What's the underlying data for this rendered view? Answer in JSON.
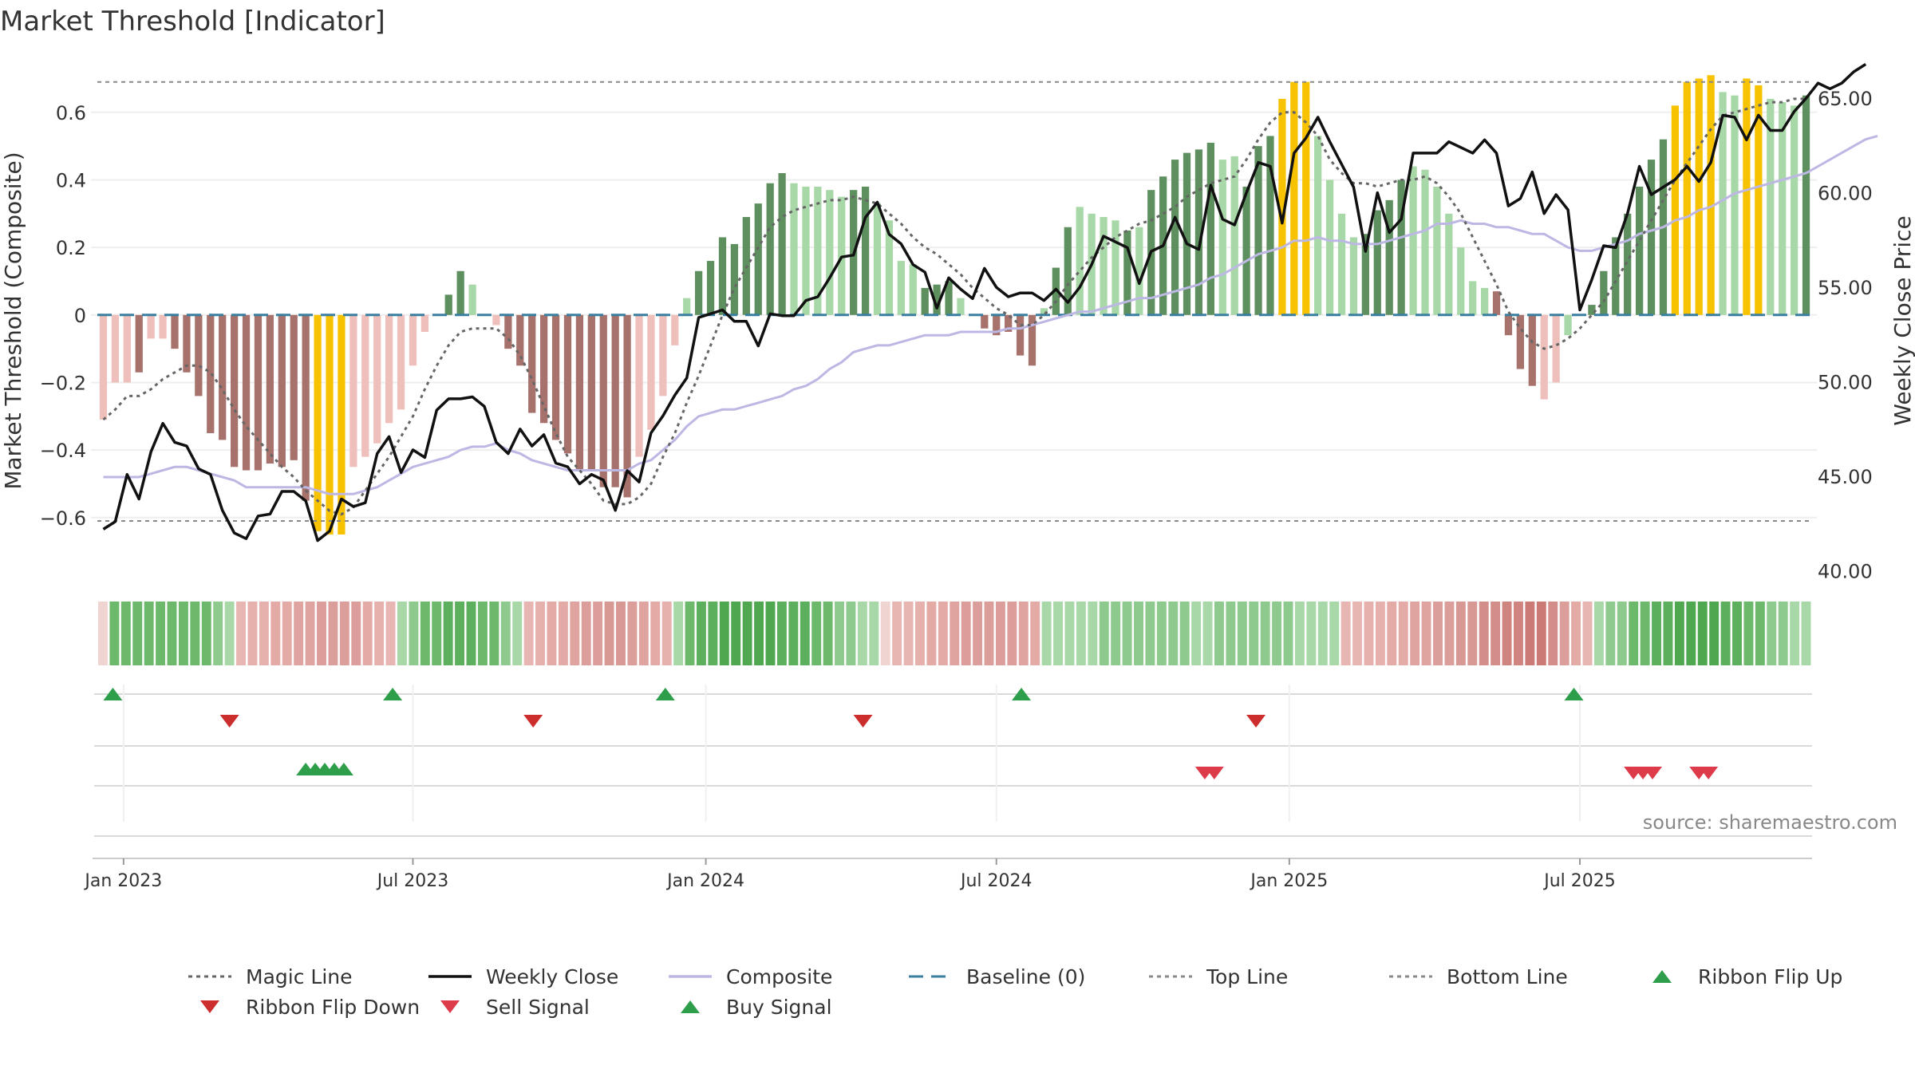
{
  "title": "Market Threshold [Indicator]",
  "source_note": "source: sharemaestro.com",
  "colors": {
    "red_light": "#efbfbb",
    "red_dark": "#a7716c",
    "green_light": "#a8d8a8",
    "green_dark": "#5e8f5e",
    "gold": "#f7c200",
    "magic": "#666666",
    "close": "#111111",
    "composite": "#bdb7e4",
    "baseline": "#3a7ea0",
    "threshold": "#888888",
    "flip_up": "#2e9e4a",
    "flip_down": "#cc2e2e",
    "sell": "#dd3b4a",
    "buy": "#2e9e4a"
  },
  "chart_data": {
    "type": "bar",
    "y_left_label": "Market Threshold (Composite)",
    "y_right_label": "Weekly Close Price",
    "y_left_ticks": [
      "0.6",
      "0.4",
      "0.2",
      "0",
      "−0.2",
      "−0.4",
      "−0.6"
    ],
    "y_left_tick_values": [
      0.6,
      0.4,
      0.2,
      0,
      -0.2,
      -0.4,
      -0.6
    ],
    "y_right_ticks": [
      "65.00",
      "60.00",
      "55.00",
      "50.00",
      "45.00",
      "40.00"
    ],
    "y_right_tick_values": [
      65,
      60,
      55,
      50,
      45,
      40
    ],
    "ylim_left": [
      -0.78,
      0.72
    ],
    "ylim_right": [
      39.6,
      66.4
    ],
    "x_ticks": [
      "Jan 2023",
      "Jul 2023",
      "Jan 2024",
      "Jul 2024",
      "Jan 2025",
      "Jul 2025"
    ],
    "x_tick_weeks": [
      1.7,
      26,
      50.6,
      75,
      99.6,
      124
    ],
    "top_line": 0.69,
    "bottom_line": -0.61,
    "baseline": 0,
    "composite_bars": [
      -0.31,
      -0.2,
      -0.2,
      -0.17,
      -0.07,
      -0.07,
      -0.1,
      -0.17,
      -0.24,
      -0.35,
      -0.37,
      -0.45,
      -0.46,
      -0.46,
      -0.44,
      -0.45,
      -0.43,
      -0.55,
      -0.64,
      -0.65,
      -0.65,
      -0.45,
      -0.42,
      -0.38,
      -0.32,
      -0.28,
      -0.15,
      -0.05,
      0,
      0.06,
      0.13,
      0.09,
      0,
      -0.03,
      -0.1,
      -0.15,
      -0.29,
      -0.32,
      -0.37,
      -0.41,
      -0.46,
      -0.46,
      -0.51,
      -0.51,
      -0.54,
      -0.42,
      -0.34,
      -0.24,
      -0.09,
      0.05,
      0.13,
      0.16,
      0.23,
      0.21,
      0.29,
      0.33,
      0.39,
      0.42,
      0.39,
      0.38,
      0.38,
      0.37,
      0.35,
      0.37,
      0.38,
      0.33,
      0.28,
      0.16,
      0.15,
      0.08,
      0.09,
      0.1,
      0.05,
      0,
      -0.04,
      -0.06,
      -0.05,
      -0.12,
      -0.15,
      0.02,
      0.14,
      0.26,
      0.32,
      0.3,
      0.29,
      0.28,
      0.25,
      0.26,
      0.37,
      0.41,
      0.46,
      0.48,
      0.49,
      0.51,
      0.46,
      0.47,
      0.38,
      0.5,
      0.53,
      0.64,
      0.69,
      0.69,
      0.53,
      0.4,
      0.3,
      0.23,
      0.24,
      0.31,
      0.34,
      0.4,
      0.44,
      0.43,
      0.38,
      0.3,
      0.2,
      0.1,
      0.08,
      0.07,
      -0.06,
      -0.16,
      -0.21,
      -0.25,
      -0.2,
      -0.06,
      0,
      0.03,
      0.13,
      0.23,
      0.3,
      0.38,
      0.46,
      0.52,
      0.62,
      0.69,
      0.7,
      0.71,
      0.66,
      0.65,
      0.7,
      0.68,
      0.64,
      0.63,
      0.62,
      0.65
    ],
    "bar_colors": [
      "rl",
      "rl",
      "rl",
      "rd",
      "rl",
      "rl",
      "rd",
      "rd",
      "rd",
      "rd",
      "rd",
      "rd",
      "rd",
      "rd",
      "rd",
      "rd",
      "rd",
      "rd",
      "g",
      "g",
      "g",
      "rl",
      "rl",
      "rl",
      "rl",
      "rl",
      "rl",
      "rl",
      "rl",
      "gd",
      "gd",
      "gl",
      "rl",
      "rl",
      "rd",
      "rd",
      "rd",
      "rd",
      "rd",
      "rd",
      "rd",
      "rd",
      "rd",
      "rd",
      "rd",
      "rl",
      "rl",
      "rl",
      "rl",
      "gl",
      "gd",
      "gd",
      "gd",
      "gd",
      "gd",
      "gd",
      "gd",
      "gd",
      "gl",
      "gl",
      "gl",
      "gl",
      "gl",
      "gd",
      "gd",
      "gl",
      "gl",
      "gl",
      "gl",
      "gd",
      "gd",
      "gd",
      "gl",
      "rd",
      "rd",
      "rd",
      "rd",
      "rd",
      "rd",
      "gl",
      "gd",
      "gd",
      "gl",
      "gl",
      "gl",
      "gl",
      "gd",
      "gl",
      "gd",
      "gd",
      "gd",
      "gd",
      "gd",
      "gd",
      "gl",
      "gl",
      "gd",
      "gd",
      "gd",
      "g",
      "g",
      "g",
      "gl",
      "gl",
      "gl",
      "gl",
      "gd",
      "gd",
      "gd",
      "gd",
      "gl",
      "gl",
      "gl",
      "gl",
      "gl",
      "gl",
      "gl",
      "rd",
      "rd",
      "rd",
      "rd",
      "rl",
      "rl",
      "gl",
      "gl",
      "gd",
      "gd",
      "gd",
      "gd",
      "gd",
      "gd",
      "gd",
      "g",
      "g",
      "g",
      "g",
      "gl",
      "gl",
      "g",
      "g",
      "gl",
      "gl",
      "gl",
      "gd"
    ],
    "series": [
      {
        "name": "Magic Line",
        "style": "dotted",
        "values": [
          -0.31,
          -0.28,
          -0.24,
          -0.24,
          -0.22,
          -0.19,
          -0.17,
          -0.15,
          -0.15,
          -0.17,
          -0.22,
          -0.28,
          -0.33,
          -0.37,
          -0.41,
          -0.45,
          -0.48,
          -0.52,
          -0.55,
          -0.58,
          -0.59,
          -0.57,
          -0.52,
          -0.47,
          -0.42,
          -0.36,
          -0.3,
          -0.22,
          -0.15,
          -0.09,
          -0.05,
          -0.04,
          -0.04,
          -0.04,
          -0.07,
          -0.12,
          -0.19,
          -0.27,
          -0.35,
          -0.42,
          -0.46,
          -0.5,
          -0.55,
          -0.56,
          -0.56,
          -0.54,
          -0.5,
          -0.42,
          -0.35,
          -0.26,
          -0.18,
          -0.09,
          0,
          0.08,
          0.14,
          0.2,
          0.26,
          0.29,
          0.31,
          0.32,
          0.33,
          0.34,
          0.34,
          0.35,
          0.34,
          0.33,
          0.3,
          0.27,
          0.23,
          0.2,
          0.18,
          0.15,
          0.12,
          0.08,
          0.05,
          0.02,
          0,
          -0.03,
          -0.03,
          0,
          0.04,
          0.09,
          0.13,
          0.17,
          0.2,
          0.23,
          0.25,
          0.27,
          0.28,
          0.3,
          0.32,
          0.35,
          0.37,
          0.39,
          0.4,
          0.41,
          0.46,
          0.52,
          0.57,
          0.6,
          0.6,
          0.57,
          0.53,
          0.46,
          0.42,
          0.39,
          0.39,
          0.38,
          0.39,
          0.4,
          0.4,
          0.41,
          0.39,
          0.35,
          0.3,
          0.23,
          0.16,
          0.09,
          0.01,
          -0.04,
          -0.08,
          -0.1,
          -0.09,
          -0.07,
          -0.04,
          0,
          0.04,
          0.1,
          0.16,
          0.22,
          0.28,
          0.34,
          0.4,
          0.45,
          0.5,
          0.55,
          0.59,
          0.6,
          0.61,
          0.62,
          0.63,
          0.63,
          0.64,
          0.64
        ]
      },
      {
        "name": "Weekly Close",
        "style": "solid",
        "values": [
          42.2,
          42.6,
          45.1,
          43.8,
          46.3,
          47.8,
          46.8,
          46.6,
          45.4,
          45.1,
          43.2,
          42.0,
          41.7,
          42.9,
          43.0,
          44.2,
          44.2,
          43.7,
          41.6,
          42.1,
          43.8,
          43.4,
          43.6,
          46.2,
          47.1,
          45.2,
          46.4,
          46.0,
          48.5,
          49.1,
          49.1,
          49.2,
          48.7,
          46.8,
          46.2,
          47.5,
          46.6,
          47.2,
          45.7,
          45.5,
          44.6,
          45.1,
          44.8,
          43.2,
          45.3,
          44.7,
          47.3,
          48.2,
          49.3,
          50.2,
          53.4,
          53.6,
          53.8,
          53.2,
          53.2,
          51.9,
          53.6,
          53.5,
          53.5,
          54.3,
          54.5,
          55.5,
          56.6,
          56.7,
          58.7,
          59.5,
          57.8,
          57.3,
          56.2,
          55.8,
          53.9,
          55.5,
          54.9,
          54.4,
          56.0,
          55.0,
          54.5,
          54.7,
          54.7,
          54.3,
          54.9,
          54.2,
          55.0,
          56.2,
          57.7,
          57.4,
          57.1,
          55.2,
          56.9,
          57.2,
          58.7,
          57.3,
          57.0,
          60.4,
          58.6,
          58.3,
          60.0,
          61.6,
          61.4,
          58.4,
          62.1,
          62.9,
          64.0,
          62.7,
          61.5,
          60.3,
          56.9,
          60.0,
          57.9,
          58.6,
          62.1,
          62.1,
          62.1,
          62.7,
          62.4,
          62.1,
          62.8,
          62.1,
          59.3,
          59.7,
          61.1,
          58.9,
          59.9,
          59.1,
          53.8,
          55.4,
          57.2,
          57.1,
          58.9,
          61.4,
          59.9,
          60.3,
          60.7,
          61.4,
          60.6,
          61.6,
          64.1,
          64.0,
          62.8,
          64.1,
          63.3,
          63.3,
          64.3,
          65.0,
          65.8,
          65.5,
          65.8,
          66.4,
          66.8
        ]
      },
      {
        "name": "Composite",
        "style": "solid",
        "values": [
          -0.48,
          -0.48,
          -0.48,
          -0.48,
          -0.47,
          -0.46,
          -0.45,
          -0.45,
          -0.46,
          -0.47,
          -0.48,
          -0.49,
          -0.51,
          -0.51,
          -0.51,
          -0.51,
          -0.51,
          -0.51,
          -0.52,
          -0.53,
          -0.53,
          -0.53,
          -0.52,
          -0.51,
          -0.49,
          -0.47,
          -0.45,
          -0.44,
          -0.43,
          -0.42,
          -0.4,
          -0.39,
          -0.39,
          -0.38,
          -0.4,
          -0.41,
          -0.43,
          -0.44,
          -0.45,
          -0.46,
          -0.46,
          -0.46,
          -0.46,
          -0.46,
          -0.46,
          -0.44,
          -0.43,
          -0.4,
          -0.37,
          -0.33,
          -0.3,
          -0.29,
          -0.28,
          -0.28,
          -0.27,
          -0.26,
          -0.25,
          -0.24,
          -0.22,
          -0.21,
          -0.19,
          -0.16,
          -0.14,
          -0.11,
          -0.1,
          -0.09,
          -0.09,
          -0.08,
          -0.07,
          -0.06,
          -0.06,
          -0.06,
          -0.05,
          -0.05,
          -0.05,
          -0.05,
          -0.04,
          -0.04,
          -0.03,
          -0.02,
          -0.01,
          0.0,
          0.01,
          0.01,
          0.02,
          0.03,
          0.04,
          0.05,
          0.05,
          0.06,
          0.07,
          0.08,
          0.09,
          0.11,
          0.12,
          0.14,
          0.16,
          0.18,
          0.19,
          0.2,
          0.22,
          0.22,
          0.23,
          0.22,
          0.22,
          0.21,
          0.21,
          0.21,
          0.22,
          0.23,
          0.24,
          0.25,
          0.27,
          0.27,
          0.28,
          0.27,
          0.27,
          0.26,
          0.26,
          0.25,
          0.24,
          0.24,
          0.22,
          0.2,
          0.19,
          0.19,
          0.2,
          0.21,
          0.22,
          0.24,
          0.25,
          0.26,
          0.28,
          0.29,
          0.31,
          0.32,
          0.34,
          0.36,
          0.37,
          0.38,
          0.39,
          0.4,
          0.41,
          0.42,
          0.44,
          0.46,
          0.48,
          0.5,
          0.52,
          0.53
        ]
      },
      {
        "name": "Baseline (0)",
        "style": "dashed"
      },
      {
        "name": "Top Line",
        "style": "dotted"
      },
      {
        "name": "Bottom Line",
        "style": "dotted"
      }
    ],
    "ribbon_colors": [
      "#f0d4d2",
      "#6cb96c",
      "#6cb96c",
      "#6cb96c",
      "#6cb96c",
      "#6cb96c",
      "#6cb96c",
      "#6cb96c",
      "#6cb96c",
      "#6cb96c",
      "#8ec98e",
      "#a8d8a8",
      "#e8b6b2",
      "#e6b0ac",
      "#e6b0ac",
      "#e3aaa6",
      "#e3aaa6",
      "#e0a4a0",
      "#e0a4a0",
      "#dc9e9a",
      "#dc9e9a",
      "#dc9e9a",
      "#dc9e9a",
      "#e3aaa6",
      "#e6b0ac",
      "#e8b6b2",
      "#a8d8a8",
      "#8ec98e",
      "#6cb96c",
      "#6cb96c",
      "#5caf5c",
      "#5caf5c",
      "#5caf5c",
      "#6cb96c",
      "#6cb96c",
      "#8ec98e",
      "#a8d8a8",
      "#e8b6b2",
      "#e6b0ac",
      "#e3aaa6",
      "#e3aaa6",
      "#e0a4a0",
      "#dc9e9a",
      "#dc9e9a",
      "#d89894",
      "#d89894",
      "#dc9e9a",
      "#e0a4a0",
      "#e3aaa6",
      "#e6b0ac",
      "#a8d8a8",
      "#6cb96c",
      "#5caf5c",
      "#5caf5c",
      "#4fa84f",
      "#4fa84f",
      "#4fa84f",
      "#4fa84f",
      "#4fa84f",
      "#5caf5c",
      "#5caf5c",
      "#5caf5c",
      "#6cb96c",
      "#6cb96c",
      "#8ec98e",
      "#8ec98e",
      "#a8d8a8",
      "#a8d8a8",
      "#f0d4d2",
      "#e8b6b2",
      "#e8b6b2",
      "#e6b0ac",
      "#e3aaa6",
      "#e3aaa6",
      "#e0a4a0",
      "#dc9e9a",
      "#dc9e9a",
      "#dc9e9a",
      "#dc9e9a",
      "#dc9e9a",
      "#e0a4a0",
      "#e3aaa6",
      "#a8d8a8",
      "#a8d8a8",
      "#a8d8a8",
      "#a8d8a8",
      "#a8d8a8",
      "#8ec98e",
      "#8ec98e",
      "#8ec98e",
      "#8ec98e",
      "#8ec98e",
      "#8ec98e",
      "#8ec98e",
      "#8ec98e",
      "#a8d8a8",
      "#a8d8a8",
      "#8ec98e",
      "#8ec98e",
      "#8ec98e",
      "#8ec98e",
      "#8ec98e",
      "#8ec98e",
      "#8ec98e",
      "#a8d8a8",
      "#a8d8a8",
      "#a8d8a8",
      "#a8d8a8",
      "#e8b6b2",
      "#e8b6b2",
      "#e6b0ac",
      "#e6b0ac",
      "#e3aaa6",
      "#e3aaa6",
      "#e0a4a0",
      "#e0a4a0",
      "#dc9e9a",
      "#dc9e9a",
      "#d89894",
      "#d89894",
      "#d48e8a",
      "#d48e8a",
      "#d0847f",
      "#d0847f",
      "#cc7a75",
      "#cc7a75",
      "#d48e8a",
      "#dc9e9a",
      "#e3aaa6",
      "#e8b6b2",
      "#a8d8a8",
      "#8ec98e",
      "#8ec98e",
      "#6cb96c",
      "#6cb96c",
      "#5caf5c",
      "#5caf5c",
      "#4fa84f",
      "#4fa84f",
      "#4fa84f",
      "#4fa84f",
      "#5caf5c",
      "#5caf5c",
      "#6cb96c",
      "#6cb96c",
      "#8ec98e",
      "#8ec98e",
      "#a8d8a8",
      "#a8d8a8"
    ],
    "ribbon_flip_up_weeks": [
      0.8,
      24.3,
      47.2,
      77.1,
      123.5
    ],
    "ribbon_flip_down_weeks": [
      10.6,
      36.1,
      63.8,
      96.8
    ],
    "buy_signal_weeks": [
      17.0,
      17.8,
      18.6,
      19.4,
      20.2
    ],
    "sell_signal_weeks": [
      92.5,
      93.3,
      128.5,
      129.3,
      130.1,
      134.0,
      134.8
    ],
    "legend": [
      {
        "label": "Magic Line",
        "kind": "dotted-line",
        "color_key": "magic"
      },
      {
        "label": "Weekly Close",
        "kind": "line",
        "color_key": "close"
      },
      {
        "label": "Composite",
        "kind": "line",
        "color_key": "composite"
      },
      {
        "label": "Baseline (0)",
        "kind": "dashed-line",
        "color_key": "baseline"
      },
      {
        "label": "Top Line",
        "kind": "dotted-line",
        "color_key": "threshold"
      },
      {
        "label": "Bottom Line",
        "kind": "dotted-line",
        "color_key": "threshold"
      },
      {
        "label": "Ribbon Flip Up",
        "kind": "tri-up",
        "color_key": "flip_up"
      },
      {
        "label": "Ribbon Flip Down",
        "kind": "tri-down",
        "color_key": "flip_down"
      },
      {
        "label": "Sell Signal",
        "kind": "tri-down",
        "color_key": "sell"
      },
      {
        "label": "Buy Signal",
        "kind": "tri-up",
        "color_key": "buy"
      }
    ]
  }
}
